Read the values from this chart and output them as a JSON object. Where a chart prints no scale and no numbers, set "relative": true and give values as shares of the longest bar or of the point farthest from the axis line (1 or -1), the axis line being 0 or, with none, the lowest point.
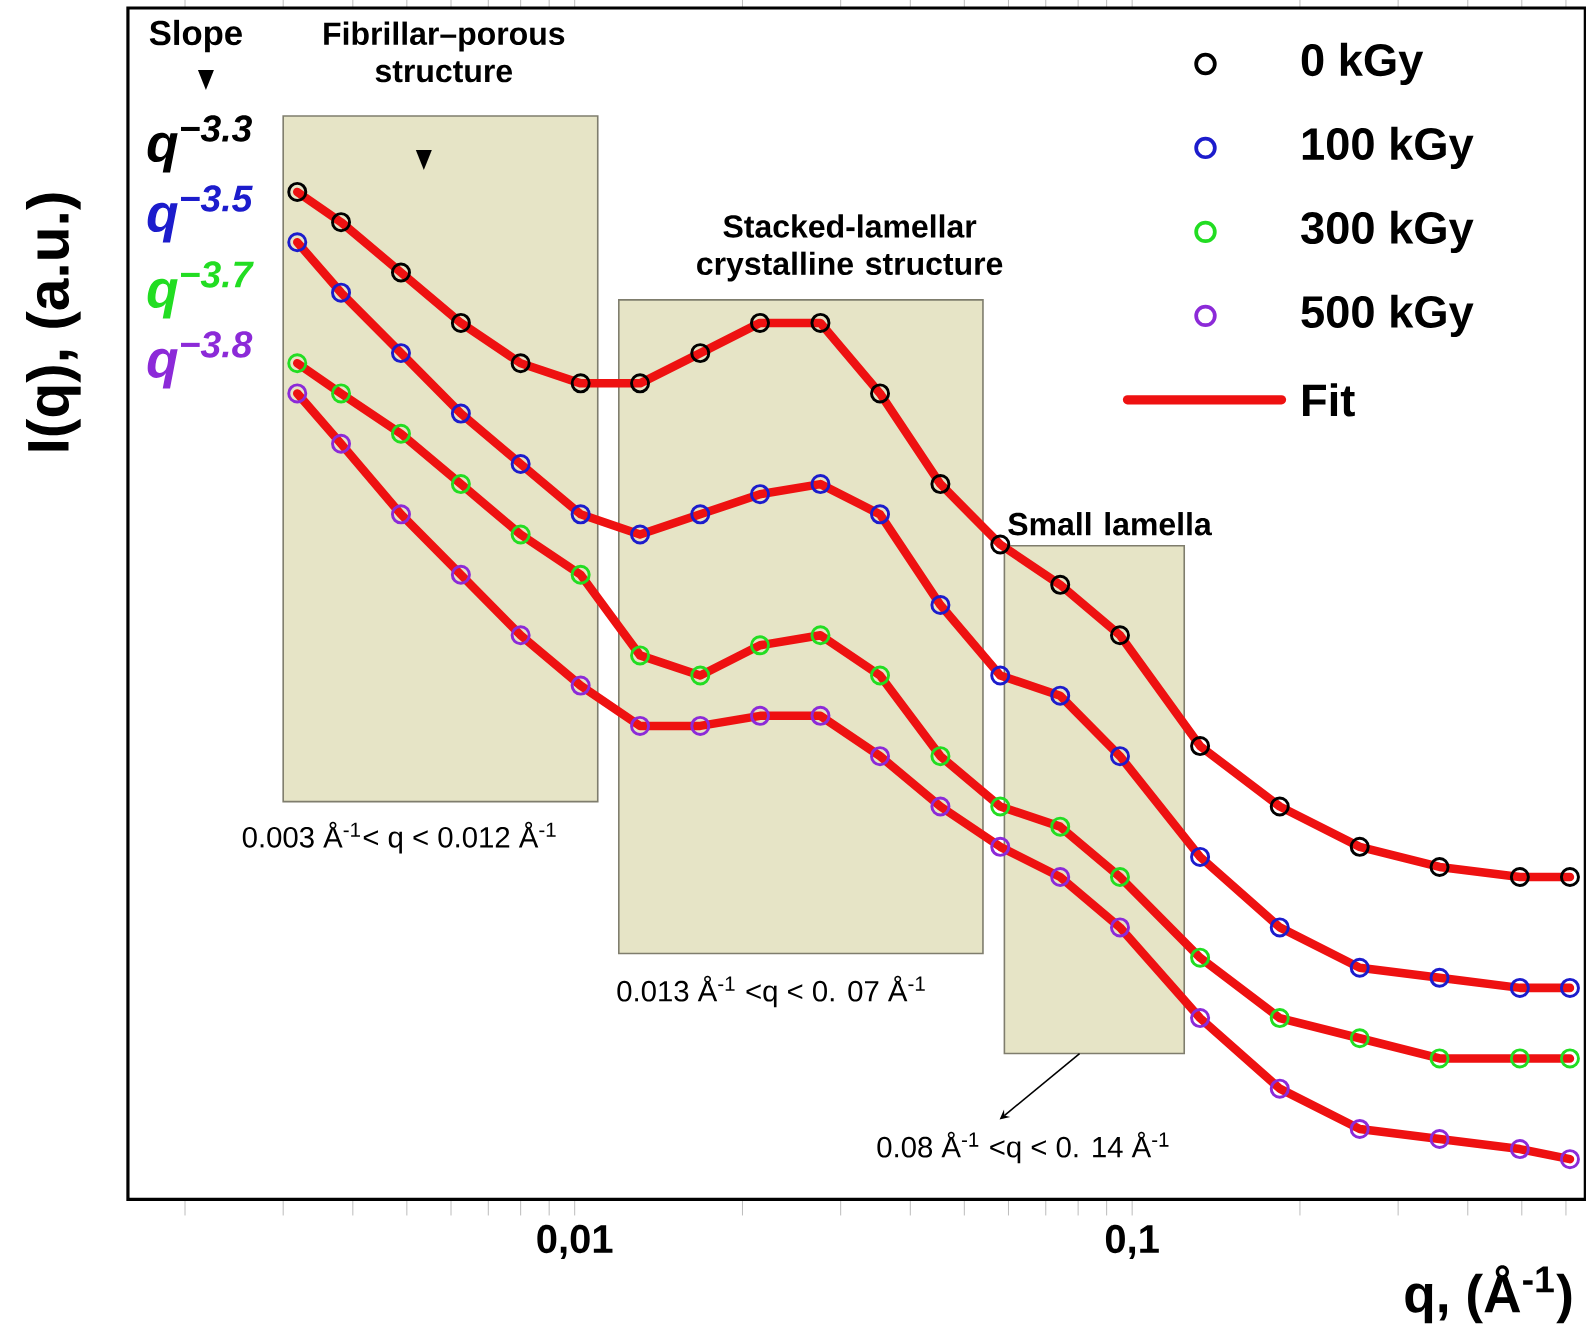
{
  "chart_data": {
    "type": "scatter",
    "relative": true,
    "log": "x",
    "marker": "circle",
    "legend": "top right",
    "tick_labels": "x",
    "xlabel": "q, (Å$^{-1}$)",
    "ylabel": "I(q), (a.u.)",
    "xlim": [
      0.00158,
      0.65
    ],
    "xticks": [
      {
        "value": 0.002,
        "label": null
      },
      {
        "value": 0.003,
        "label": null
      },
      {
        "value": 0.004,
        "label": null
      },
      {
        "value": 0.005,
        "label": null
      },
      {
        "value": 0.006,
        "label": null
      },
      {
        "value": 0.007,
        "label": null
      },
      {
        "value": 0.008,
        "label": null
      },
      {
        "value": 0.009,
        "label": null
      },
      {
        "value": 0.01,
        "label": "0,01"
      },
      {
        "value": 0.02,
        "label": null
      },
      {
        "value": 0.03,
        "label": null
      },
      {
        "value": 0.04,
        "label": null
      },
      {
        "value": 0.05,
        "label": null
      },
      {
        "value": 0.06,
        "label": null
      },
      {
        "value": 0.07,
        "label": null
      },
      {
        "value": 0.08,
        "label": null
      },
      {
        "value": 0.09,
        "label": null
      },
      {
        "value": 0.1,
        "label": "0,1"
      },
      {
        "value": 0.2,
        "label": null
      },
      {
        "value": 0.3,
        "label": null
      },
      {
        "value": 0.4,
        "label": null
      },
      {
        "value": 0.5,
        "label": null
      },
      {
        "value": 0.6,
        "label": null
      }
    ],
    "x": [
      0.00318,
      0.00381,
      0.00488,
      0.00625,
      0.008,
      0.01025,
      0.0131,
      0.0168,
      0.0215,
      0.0276,
      0.0353,
      0.0453,
      0.058,
      0.0743,
      0.0951,
      0.1324,
      0.184,
      0.256,
      0.356,
      0.496,
      0.61
    ],
    "series": [
      {
        "name": "0 kGy",
        "color": "#000000",
        "values": [
          1.0,
          0.97,
          0.92,
          0.87,
          0.83,
          0.81,
          0.81,
          0.84,
          0.87,
          0.87,
          0.8,
          0.71,
          0.65,
          0.61,
          0.56,
          0.45,
          0.39,
          0.35,
          0.33,
          0.32,
          0.32
        ]
      },
      {
        "name": "100 kGy",
        "color": "#1c1ccc",
        "values": [
          0.95,
          0.9,
          0.84,
          0.78,
          0.73,
          0.68,
          0.66,
          0.68,
          0.7,
          0.71,
          0.68,
          0.59,
          0.52,
          0.5,
          0.44,
          0.34,
          0.27,
          0.23,
          0.22,
          0.21,
          0.21
        ]
      },
      {
        "name": "300 kGy",
        "color": "#22dd22",
        "values": [
          0.83,
          0.8,
          0.76,
          0.71,
          0.66,
          0.62,
          0.54,
          0.52,
          0.55,
          0.56,
          0.52,
          0.44,
          0.39,
          0.37,
          0.32,
          0.24,
          0.18,
          0.16,
          0.14,
          0.14,
          0.14
        ]
      },
      {
        "name": "500 kGy",
        "color": "#8c2ad8",
        "values": [
          0.8,
          0.75,
          0.68,
          0.62,
          0.56,
          0.51,
          0.47,
          0.47,
          0.48,
          0.48,
          0.44,
          0.39,
          0.35,
          0.32,
          0.27,
          0.18,
          0.11,
          0.07,
          0.06,
          0.05,
          0.04
        ]
      },
      {
        "type": "line",
        "name": "Fit",
        "marker": "none",
        "color": "#ee1111",
        "values": [
          1.0,
          0.97,
          0.92,
          0.87,
          0.83,
          0.81,
          0.81,
          0.84,
          0.87,
          0.87,
          0.8,
          0.71,
          0.65,
          0.61,
          0.56,
          0.45,
          0.39,
          0.35,
          0.33,
          0.32,
          0.32
        ]
      },
      {
        "type": "line",
        "marker": "none",
        "color": "#ee1111",
        "values": [
          0.95,
          0.9,
          0.84,
          0.78,
          0.73,
          0.68,
          0.66,
          0.68,
          0.7,
          0.71,
          0.68,
          0.59,
          0.52,
          0.5,
          0.44,
          0.34,
          0.27,
          0.23,
          0.22,
          0.21,
          0.21
        ]
      },
      {
        "type": "line",
        "marker": "none",
        "color": "#ee1111",
        "values": [
          0.83,
          0.8,
          0.76,
          0.71,
          0.66,
          0.62,
          0.54,
          0.52,
          0.55,
          0.56,
          0.52,
          0.44,
          0.39,
          0.37,
          0.32,
          0.24,
          0.18,
          0.16,
          0.14,
          0.14,
          0.14
        ]
      },
      {
        "type": "line",
        "marker": "none",
        "color": "#ee1111",
        "values": [
          0.8,
          0.75,
          0.68,
          0.62,
          0.56,
          0.51,
          0.47,
          0.47,
          0.48,
          0.48,
          0.44,
          0.39,
          0.35,
          0.32,
          0.27,
          0.18,
          0.11,
          0.07,
          0.06,
          0.05,
          0.04
        ]
      }
    ],
    "bands": [
      {
        "axis": "x",
        "from": 0.003,
        "to": 0.011,
        "label": "Fibrillar–porous structure",
        "color": "#e6e4c6"
      },
      {
        "axis": "x",
        "from": 0.012,
        "to": 0.054,
        "label": "Stacked-lamellar crystalline structure",
        "color": "#e6e4c6"
      },
      {
        "axis": "x",
        "from": 0.059,
        "to": 0.124,
        "label": "Small lamella",
        "color": "#e6e4c6"
      }
    ],
    "annotations": [
      "Slope",
      "q$^{−3.3}$",
      "q$^{−3.5}$",
      "q$^{−3.7}$",
      "q$^{−3.8}$",
      "0.003 Å$^{-1}$< q < 0.012 Å$^{-1}$",
      "0.013 Å$^{-1}$ <q < 0. 07 Å$^{-1}$",
      "0.08 Å$^{-1}$ <q < 0. 14 Å$^{-1}$"
    ]
  }
}
